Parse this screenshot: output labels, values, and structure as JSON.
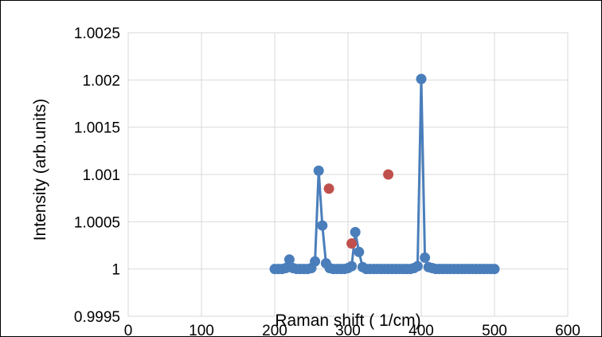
{
  "chart_data": {
    "type": "scatter",
    "title": "",
    "xlabel": "Raman shift ( 1/cm)",
    "ylabel": "Intensity (arb.units)",
    "xlim": [
      0,
      600
    ],
    "ylim": [
      0.9995,
      1.0025
    ],
    "xticks": [
      0,
      100,
      200,
      300,
      400,
      500,
      600
    ],
    "xtick_labels": [
      "0",
      "100",
      "200",
      "300",
      "400",
      "500",
      "600"
    ],
    "yticks": [
      0.9995,
      1,
      1.0005,
      1.001,
      1.0015,
      1.002,
      1.0025
    ],
    "ytick_labels": [
      "0.9995",
      "1",
      "1.0005",
      "1.001",
      "1.0015",
      "1.002",
      "1.0025"
    ],
    "grid": true,
    "legend": "none",
    "colors": {
      "series1": "#4a7ebb",
      "series2": "#c0504d",
      "grid": "#d9d9d9"
    },
    "series": [
      {
        "style": "line-with-markers",
        "color": "#4a7ebb",
        "x": [
          200,
          205,
          210,
          215,
          220,
          225,
          230,
          235,
          240,
          245,
          250,
          255,
          260,
          265,
          270,
          275,
          280,
          285,
          290,
          295,
          300,
          305,
          310,
          315,
          320,
          325,
          330,
          335,
          340,
          345,
          350,
          355,
          360,
          365,
          370,
          375,
          380,
          385,
          390,
          395,
          400,
          405,
          410,
          415,
          420,
          425,
          430,
          435,
          440,
          445,
          450,
          455,
          460,
          465,
          470,
          475,
          480,
          485,
          490,
          495,
          500
        ],
        "y": [
          1.0,
          1.0,
          1.0,
          1.00001,
          1.0001,
          1.00001,
          1.0,
          1.0,
          1.0,
          1.0,
          1.00001,
          1.00008,
          1.00104,
          1.00046,
          1.00006,
          1.00001,
          1.0,
          1.0,
          1.0,
          1.0,
          1.00001,
          1.00003,
          1.00039,
          1.00018,
          1.00002,
          1.0,
          1.0,
          1.0,
          1.0,
          1.0,
          1.0,
          1.0,
          1.0,
          1.0,
          1.0,
          1.0,
          1.0,
          1.0,
          1.00001,
          1.00003,
          1.00201,
          1.00012,
          1.00002,
          1.00001,
          1.0,
          1.0,
          1.0,
          1.0,
          1.0,
          1.0,
          1.0,
          1.0,
          1.0,
          1.0,
          1.0,
          1.0,
          1.0,
          1.0,
          1.0,
          1.0,
          1.0
        ]
      },
      {
        "style": "markers",
        "color": "#c0504d",
        "x": [
          274,
          305,
          355
        ],
        "y": [
          1.00085,
          1.00027,
          1.001
        ]
      }
    ]
  }
}
